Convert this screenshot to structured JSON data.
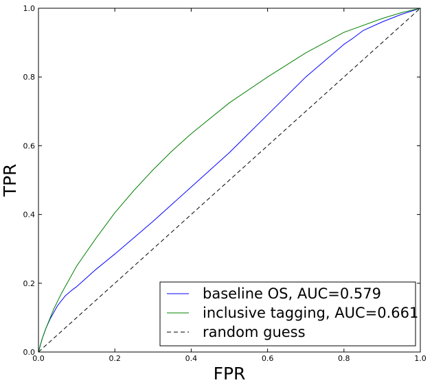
{
  "chart_data": {
    "type": "line",
    "title": "",
    "xlabel": "FPR",
    "ylabel": "TPR",
    "xlim": [
      0.0,
      1.0
    ],
    "ylim": [
      0.0,
      1.0
    ],
    "x_ticks": [
      "0.0",
      "0.2",
      "0.4",
      "0.6",
      "0.8",
      "1.0"
    ],
    "y_ticks": [
      "0.0",
      "0.2",
      "0.4",
      "0.6",
      "0.8",
      "1.0"
    ],
    "grid": false,
    "legend_position": "lower-right",
    "series": [
      {
        "name": "baseline OS, AUC=0.579",
        "color": "#0000ff",
        "dash": "solid",
        "x": [
          0.0,
          0.01,
          0.02,
          0.03,
          0.05,
          0.07,
          0.09,
          0.1,
          0.15,
          0.2,
          0.3,
          0.4,
          0.5,
          0.6,
          0.7,
          0.8,
          0.82,
          0.85,
          0.9,
          0.95,
          1.0
        ],
        "y": [
          0.0,
          0.04,
          0.07,
          0.095,
          0.135,
          0.163,
          0.182,
          0.19,
          0.24,
          0.285,
          0.38,
          0.48,
          0.58,
          0.69,
          0.8,
          0.895,
          0.91,
          0.935,
          0.96,
          0.982,
          1.0
        ]
      },
      {
        "name": "inclusive tagging, AUC=0.661",
        "color": "#008000",
        "dash": "solid",
        "x": [
          0.0,
          0.01,
          0.02,
          0.04,
          0.06,
          0.08,
          0.1,
          0.15,
          0.2,
          0.25,
          0.3,
          0.35,
          0.4,
          0.5,
          0.6,
          0.7,
          0.8,
          0.9,
          0.95,
          1.0
        ],
        "y": [
          0.0,
          0.04,
          0.07,
          0.125,
          0.17,
          0.21,
          0.25,
          0.33,
          0.405,
          0.47,
          0.53,
          0.585,
          0.635,
          0.725,
          0.8,
          0.87,
          0.93,
          0.97,
          0.987,
          1.0
        ]
      },
      {
        "name": "random guess",
        "color": "#000000",
        "dash": "dashed",
        "x": [
          0.0,
          1.0
        ],
        "y": [
          0.0,
          1.0
        ]
      }
    ]
  }
}
